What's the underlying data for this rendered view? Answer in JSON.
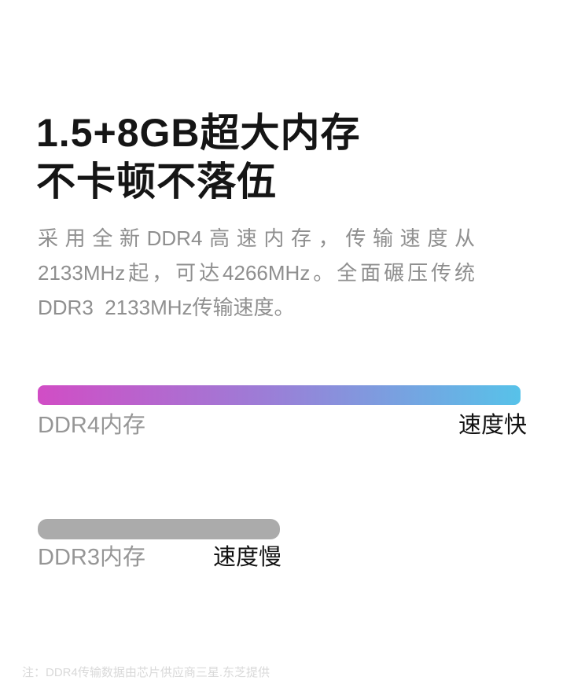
{
  "headline": {
    "line1": "1.5+8GB超大内存",
    "line2": "不卡顿不落伍"
  },
  "description": {
    "lines": [
      "采用全新DDR4高速内存，传输速度从",
      "2133MHz起，可达4266MHz。全面碾压传统",
      "DDR3  2133MHz传输速度。"
    ]
  },
  "ddr4": {
    "label": "DDR4内存",
    "note": "速度快"
  },
  "ddr3": {
    "label": "DDR3内存",
    "note": "速度慢"
  },
  "footnote": {
    "text": "注：DDR4传输数据由芯片供应商三星.东芝提供"
  },
  "colors": {
    "ddr4_gradient": [
      "#d14dc5",
      "#9b7ed7",
      "#57c2e9"
    ],
    "ddr3_bar": "#ababab",
    "headline_text": "#151515",
    "body_text": "#8f8f8f",
    "note_text": "#111111",
    "footnote_text": "#d9d9d9"
  },
  "chart_data": {
    "type": "bar",
    "orientation": "horizontal",
    "categories": [
      "DDR4内存",
      "DDR3内存"
    ],
    "values": [
      4266,
      2133
    ],
    "unit": "MHz",
    "relative_bar_lengths": [
      1.0,
      0.5
    ],
    "annotations": [
      "速度快",
      "速度慢"
    ],
    "title": "",
    "xlabel": "",
    "ylabel": "",
    "grid": false,
    "legend": false
  }
}
